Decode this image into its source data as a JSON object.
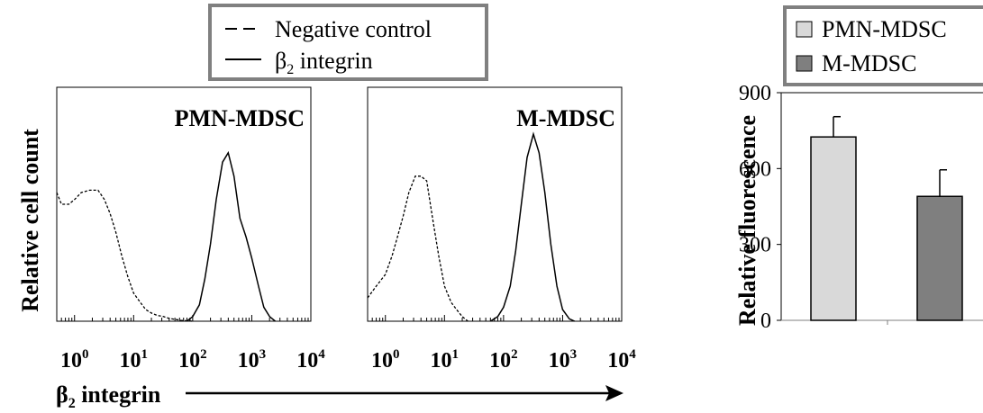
{
  "figure": {
    "xaxis_label": "β2 integrin",
    "xaxis_label_main": "β",
    "xaxis_label_sub": "2",
    "xaxis_label_rest": " integrin",
    "histogram_ylabel": "Relative cell count"
  },
  "histogram_legend": {
    "items": [
      {
        "label": "Negative control",
        "style": "dashed"
      },
      {
        "label_main": "β",
        "label_sub": "2",
        "label_rest": " integrin",
        "style": "solid"
      }
    ]
  },
  "bar_legend": {
    "items": [
      {
        "label": "PMN-MDSC",
        "color": "#d9d9d9"
      },
      {
        "label": "M-MDSC",
        "color": "#7f7f7f"
      }
    ]
  },
  "chart_data": [
    {
      "type": "line",
      "title": "PMN-MDSC",
      "ylabel": "Relative cell count",
      "xscale": "log",
      "xlim": [
        0.5,
        10000
      ],
      "xticklabels": [
        {
          "base": "10",
          "exp": "0",
          "value": 1
        },
        {
          "base": "10",
          "exp": "1",
          "value": 10
        },
        {
          "base": "10",
          "exp": "2",
          "value": 100
        },
        {
          "base": "10",
          "exp": "3",
          "value": 1000
        },
        {
          "base": "10",
          "exp": "4",
          "value": 10000
        }
      ],
      "ylim": [
        0,
        1
      ],
      "series": [
        {
          "name": "Negative control",
          "style": "dashed",
          "x": [
            0.5,
            0.6,
            0.8,
            1.0,
            1.3,
            1.8,
            2.5,
            3.2,
            4.0,
            5.0,
            6.3,
            8.0,
            10,
            13,
            16,
            20,
            25,
            32,
            40,
            50,
            63,
            80,
            100
          ],
          "y": [
            0.55,
            0.5,
            0.5,
            0.52,
            0.55,
            0.56,
            0.56,
            0.52,
            0.46,
            0.38,
            0.28,
            0.19,
            0.12,
            0.08,
            0.05,
            0.035,
            0.025,
            0.02,
            0.012,
            0.008,
            0.004,
            0.002,
            0
          ]
        },
        {
          "name": "β2 integrin",
          "style": "solid",
          "x": [
            80,
            100,
            130,
            160,
            200,
            250,
            320,
            400,
            500,
            630,
            800,
            1000,
            1300,
            1600,
            2000,
            2500
          ],
          "y": [
            0,
            0.02,
            0.07,
            0.18,
            0.33,
            0.52,
            0.68,
            0.72,
            0.62,
            0.44,
            0.36,
            0.27,
            0.15,
            0.06,
            0.02,
            0
          ]
        }
      ]
    },
    {
      "type": "line",
      "title": "M-MDSC",
      "xscale": "log",
      "xlim": [
        0.5,
        10000
      ],
      "xticklabels": [
        {
          "base": "10",
          "exp": "0",
          "value": 1
        },
        {
          "base": "10",
          "exp": "1",
          "value": 10
        },
        {
          "base": "10",
          "exp": "2",
          "value": 100
        },
        {
          "base": "10",
          "exp": "3",
          "value": 1000
        },
        {
          "base": "10",
          "exp": "4",
          "value": 10000
        }
      ],
      "ylim": [
        0,
        1
      ],
      "series": [
        {
          "name": "Negative control",
          "style": "dashed",
          "x": [
            0.5,
            0.7,
            1.0,
            1.3,
            1.6,
            2.0,
            2.5,
            3.2,
            4.0,
            5.0,
            6.3,
            8.0,
            10,
            13,
            16,
            20,
            25
          ],
          "y": [
            0.1,
            0.15,
            0.2,
            0.28,
            0.36,
            0.45,
            0.55,
            0.62,
            0.62,
            0.6,
            0.44,
            0.28,
            0.15,
            0.08,
            0.05,
            0.02,
            0
          ]
        },
        {
          "name": "β2 integrin",
          "style": "solid",
          "x": [
            60,
            80,
            100,
            130,
            160,
            200,
            250,
            320,
            400,
            500,
            630,
            800,
            1000,
            1300,
            1600
          ],
          "y": [
            0,
            0.02,
            0.06,
            0.15,
            0.3,
            0.5,
            0.7,
            0.8,
            0.72,
            0.55,
            0.33,
            0.15,
            0.05,
            0.01,
            0
          ]
        }
      ]
    },
    {
      "type": "bar",
      "categories": [
        "PMN-MDSC",
        "M-MDSC"
      ],
      "values": [
        725,
        490
      ],
      "errors": [
        80,
        105
      ],
      "colors": [
        "#d9d9d9",
        "#7f7f7f"
      ],
      "ylabel": "Relative fluorescence",
      "ylim": [
        0,
        900
      ],
      "yticks": [
        0,
        300,
        600,
        900
      ],
      "legend": "top"
    }
  ]
}
